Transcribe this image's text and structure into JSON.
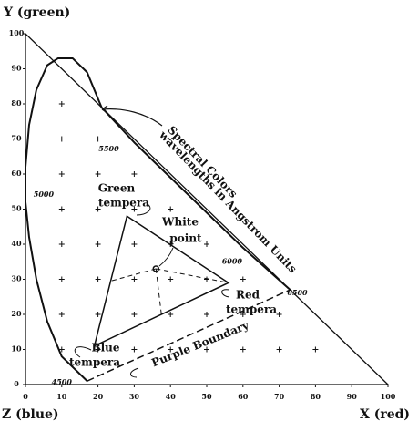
{
  "chart_data": {
    "type": "chromaticity",
    "y_axis_label": "Y (green)",
    "z_axis_label": "Z (blue)",
    "x_axis_label": "X (red)",
    "xlim": [
      0,
      100
    ],
    "ylim": [
      0,
      100
    ],
    "xticks": [
      0,
      10,
      20,
      30,
      40,
      50,
      60,
      70,
      80,
      90,
      100
    ],
    "yticks": [
      0,
      10,
      20,
      30,
      40,
      50,
      60,
      70,
      80,
      90,
      100
    ],
    "grid": true,
    "spectral_locus": {
      "x": [
        17,
        10,
        6,
        3,
        1,
        0,
        0,
        1,
        3,
        6,
        9,
        13,
        17,
        21,
        30,
        40,
        50,
        60,
        73
      ],
      "y": [
        1,
        8,
        18,
        30,
        42,
        52,
        62,
        74,
        84,
        91,
        93,
        93,
        89,
        79,
        69,
        59,
        49,
        39,
        27
      ]
    },
    "wavelength_labels": [
      {
        "label": 4500,
        "x": 10,
        "y": 0.5
      },
      {
        "label": 5000,
        "x": 5,
        "y": 54
      },
      {
        "label": 5500,
        "x": 23,
        "y": 67
      },
      {
        "label": 6000,
        "x": 57,
        "y": 35
      },
      {
        "label": 6500,
        "x": 75,
        "y": 26
      }
    ],
    "spectral_label": [
      "Spectral Colors",
      "wavelengths in Angstrom Units"
    ],
    "purple_boundary_label": "Purple Boundary",
    "tempera": {
      "names": [
        [
          "Green",
          "tempera"
        ],
        [
          "Red",
          "tempera"
        ],
        [
          "Blue",
          "tempera"
        ]
      ],
      "x": [
        28,
        56,
        19
      ],
      "y": [
        48,
        29,
        11
      ]
    },
    "white_point": {
      "label": [
        "White",
        "point"
      ],
      "x": 36,
      "y": 33
    }
  }
}
